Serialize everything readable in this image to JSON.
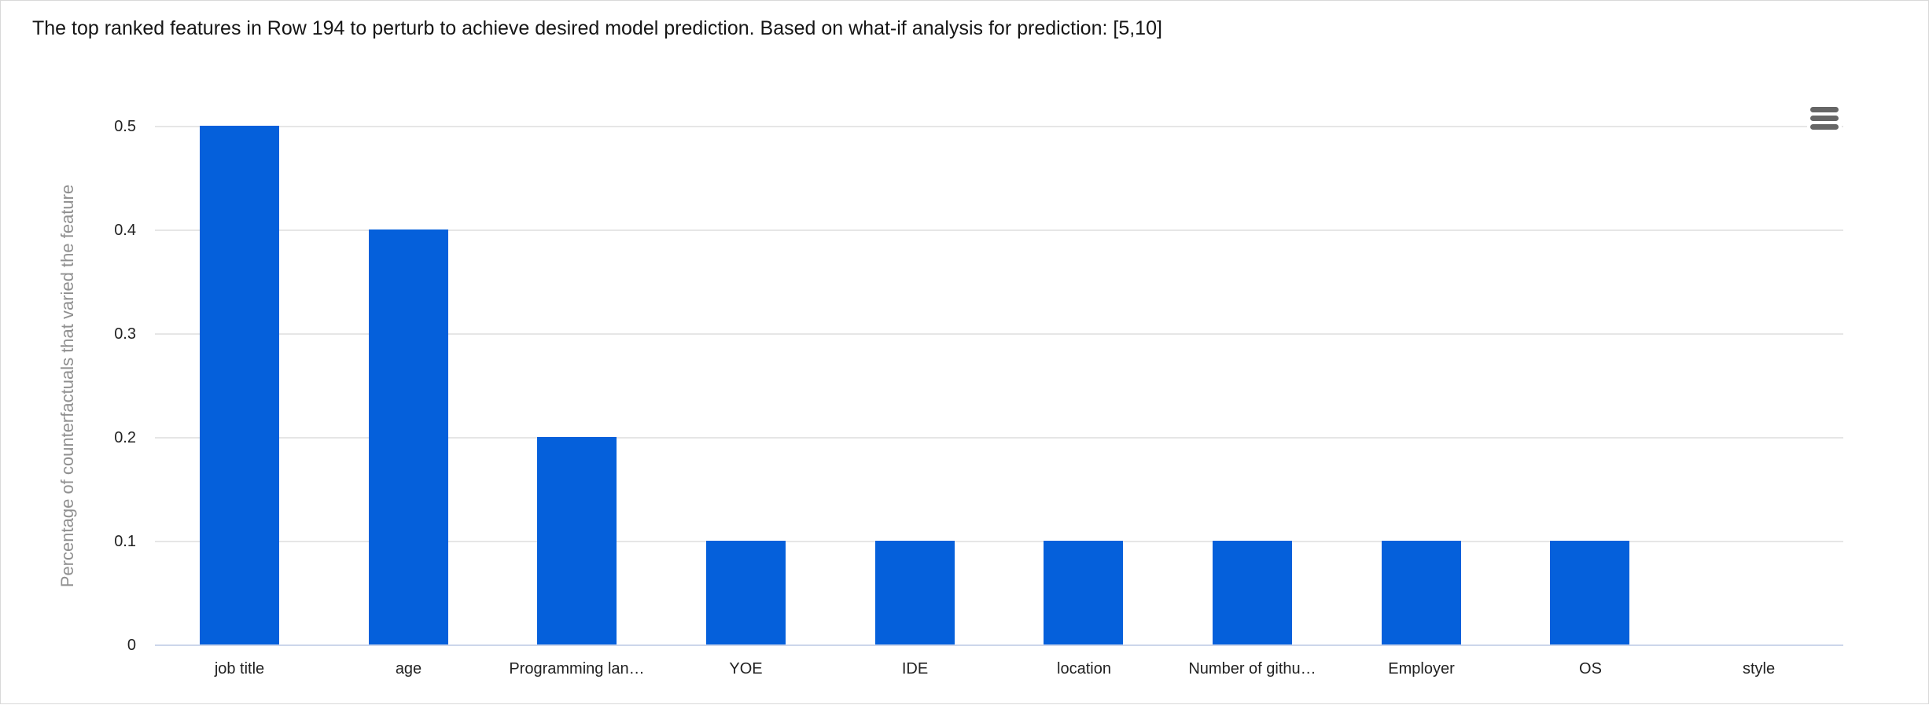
{
  "header": {
    "title": "The top ranked features in Row 194 to perturb to achieve desired model prediction. Based on what-if analysis for prediction: [5,10]"
  },
  "toolbar": {
    "context_menu_icon": "hamburger-menu-icon"
  },
  "chart_data": {
    "type": "bar",
    "title": "The top ranked features in Row 194 to perturb to achieve desired model prediction. Based on what-if analysis for prediction: [5,10]",
    "categories": [
      "job title",
      "age",
      "Programming lan…",
      "YOE",
      "IDE",
      "location",
      "Number of githu…",
      "Employer",
      "OS",
      "style"
    ],
    "values": [
      0.5,
      0.4,
      0.2,
      0.1,
      0.1,
      0.1,
      0.1,
      0.1,
      0.1,
      0
    ],
    "xlabel": "",
    "ylabel": "Percentage of counterfactuals that varied the feature",
    "ylim": [
      0,
      0.5
    ],
    "yticks": [
      0,
      0.1,
      0.2,
      0.3,
      0.4,
      0.5
    ],
    "ytick_labels": [
      "0",
      "0.1",
      "0.2",
      "0.3",
      "0.4",
      "0.5"
    ],
    "grid": true,
    "legend_position": "none",
    "colors": {
      "bar": "#0560db",
      "gridline": "#e6e6e6",
      "axis_line": "#ccd6eb",
      "tick_label": "#222222",
      "axis_title": "#8f8f8f",
      "title": "#161616",
      "menu_icon": "#666666"
    }
  }
}
